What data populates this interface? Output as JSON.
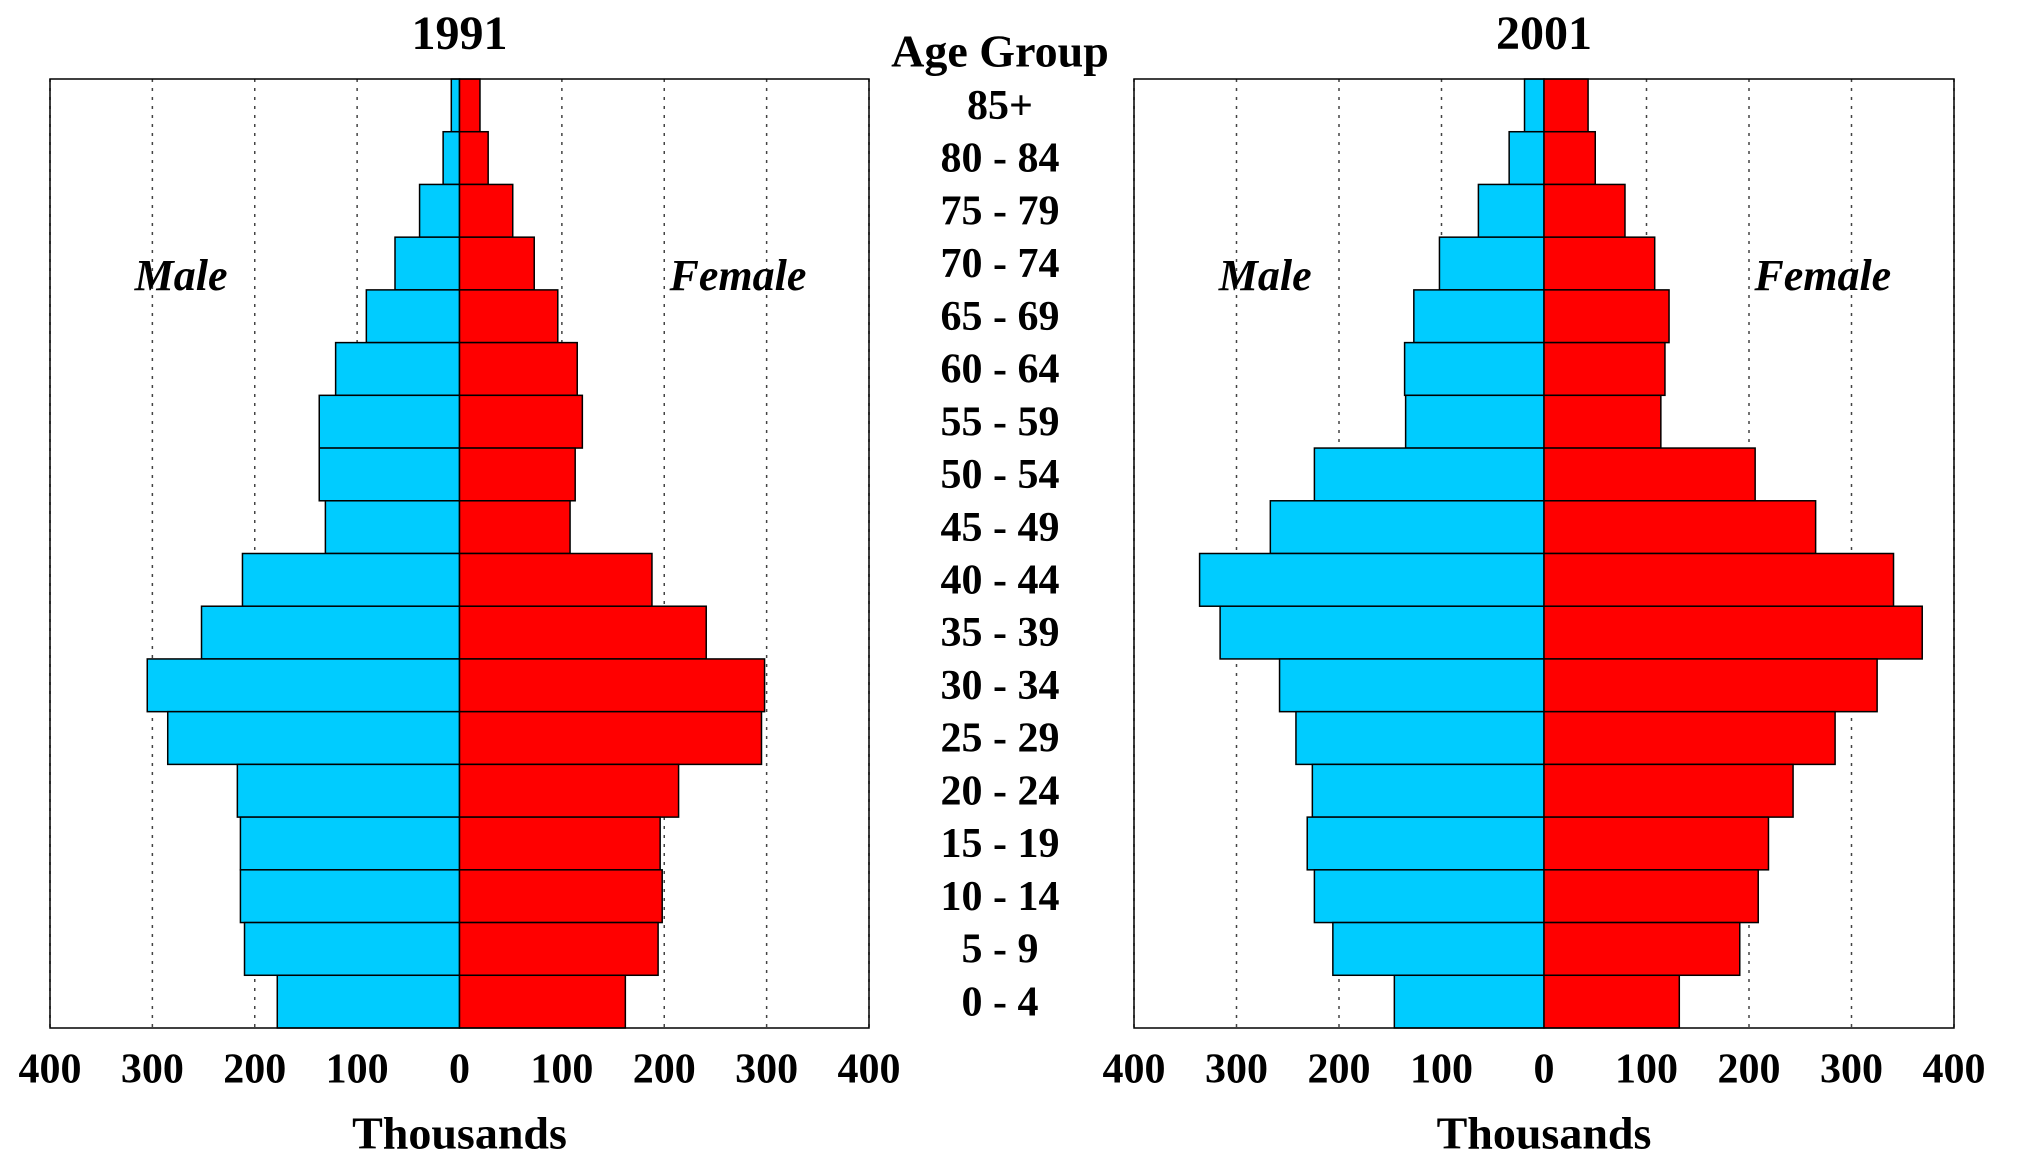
{
  "chart_data": {
    "type": "pyramid",
    "y_label": "Age Group",
    "categories": [
      "85+",
      "80 - 84",
      "75 - 79",
      "70 - 74",
      "65 - 69",
      "60 - 64",
      "55 - 59",
      "50 - 54",
      "45 - 49",
      "40 - 44",
      "35 - 39",
      "30 - 34",
      "25 - 29",
      "20 - 24",
      "15 - 19",
      "10 - 14",
      "5 - 9",
      "0 - 4"
    ],
    "xlim": [
      -400,
      400
    ],
    "xticks": [
      {
        "value": -400,
        "label": "400"
      },
      {
        "value": -300,
        "label": "300"
      },
      {
        "value": -200,
        "label": "200"
      },
      {
        "value": -100,
        "label": "100"
      },
      0,
      100,
      200,
      300,
      400
    ],
    "grid": true,
    "panels": [
      {
        "title": "1991",
        "x_label": "Thousands",
        "series": [
          {
            "name": "Male",
            "color": "#00ccff",
            "values": [
              -8,
              -16,
              -39,
              -63,
              -91,
              -121,
              -137,
              -137,
              -131,
              -212,
              -252,
              -305,
              -285,
              -217,
              -214,
              -214,
              -210,
              -178
            ]
          },
          {
            "name": "Female",
            "color": "#ff0000",
            "values": [
              20,
              28,
              52,
              73,
              96,
              115,
              120,
              113,
              108,
              188,
              241,
              298,
              295,
              214,
              196,
              198,
              194,
              162
            ]
          }
        ]
      },
      {
        "title": "2001",
        "x_label": "Thousands",
        "series": [
          {
            "name": "Male",
            "color": "#00ccff",
            "values": [
              -19,
              -34,
              -64,
              -102,
              -127,
              -136,
              -135,
              -224,
              -267,
              -336,
              -316,
              -258,
              -242,
              -226,
              -231,
              -224,
              -206,
              -146
            ]
          },
          {
            "name": "Female",
            "color": "#ff0000",
            "values": [
              43,
              50,
              79,
              108,
              122,
              118,
              114,
              206,
              265,
              341,
              369,
              325,
              284,
              243,
              219,
              209,
              191,
              132
            ]
          }
        ]
      }
    ]
  }
}
